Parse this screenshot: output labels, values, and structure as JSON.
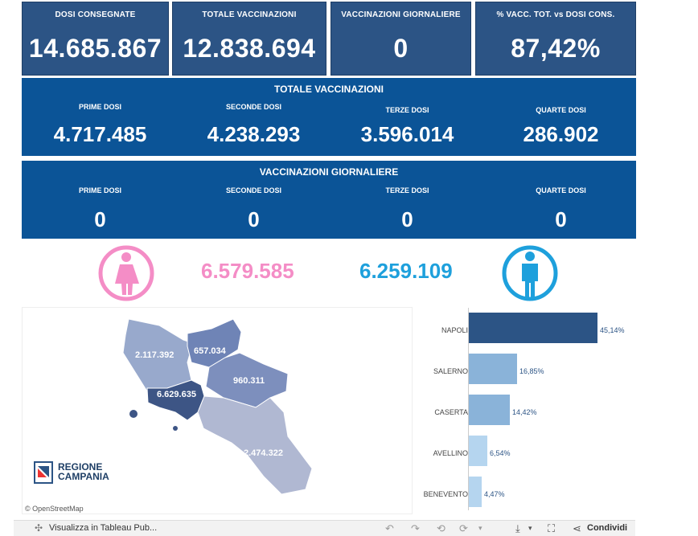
{
  "kpis": [
    {
      "label": "DOSI  CONSEGNATE",
      "value": "14.685.867"
    },
    {
      "label": "TOTALE VACCINAZIONI",
      "value": "12.838.694"
    },
    {
      "label": "VACCINAZIONI GIORNALIERE",
      "value": "0"
    },
    {
      "label": "% VACC. TOT. vs DOSI CONS.",
      "value": "87,42%"
    }
  ],
  "totale": {
    "title": "TOTALE VACCINAZIONI",
    "cols": [
      {
        "label": "PRIME DOSI",
        "value": "4.717.485"
      },
      {
        "label": "SECONDE DOSI",
        "value": "4.238.293"
      },
      {
        "label": "TERZE DOSI",
        "value": "3.596.014"
      },
      {
        "label": "QUARTE DOSI",
        "value": "286.902"
      }
    ]
  },
  "giornaliere": {
    "title": "VACCINAZIONI GIORNALIERE",
    "cols": [
      {
        "label": "PRIME DOSI",
        "value": "0"
      },
      {
        "label": "SECONDE DOSI",
        "value": "0"
      },
      {
        "label": "TERZE DOSI",
        "value": "0"
      },
      {
        "label": "QUARTE DOSI",
        "value": "0"
      }
    ]
  },
  "gender": {
    "female": "6.579.585",
    "male": "6.259.109",
    "female_color": "#f48dc6",
    "male_color": "#1ea0dc"
  },
  "map": {
    "labels": [
      {
        "province": "Caserta",
        "value": "2.117.392"
      },
      {
        "province": "Benevento",
        "value": "657.034"
      },
      {
        "province": "Avellino",
        "value": "960.311"
      },
      {
        "province": "Napoli",
        "value": "6.629.635"
      },
      {
        "province": "Salerno",
        "value": "2.474.322"
      }
    ],
    "logo_line1": "REGIONE",
    "logo_line2": "CAMPANIA",
    "attribution": "© OpenStreetMap"
  },
  "bars": [
    {
      "name": "NAPOLI",
      "pct": "45,14%",
      "value": 45.14,
      "color": "#2c5485"
    },
    {
      "name": "SALERNO",
      "pct": "16,85%",
      "value": 16.85,
      "color": "#8ab3d9"
    },
    {
      "name": "CASERTA",
      "pct": "14,42%",
      "value": 14.42,
      "color": "#8ab3d9"
    },
    {
      "name": "AVELLINO",
      "pct": "6,54%",
      "value": 6.54,
      "color": "#b5d5ef"
    },
    {
      "name": "BENEVENTO",
      "pct": "4,47%",
      "value": 4.47,
      "color": "#b5d5ef"
    }
  ],
  "footer": {
    "tableau": "Visualizza in Tableau Pub...",
    "share": "Condividi"
  }
}
